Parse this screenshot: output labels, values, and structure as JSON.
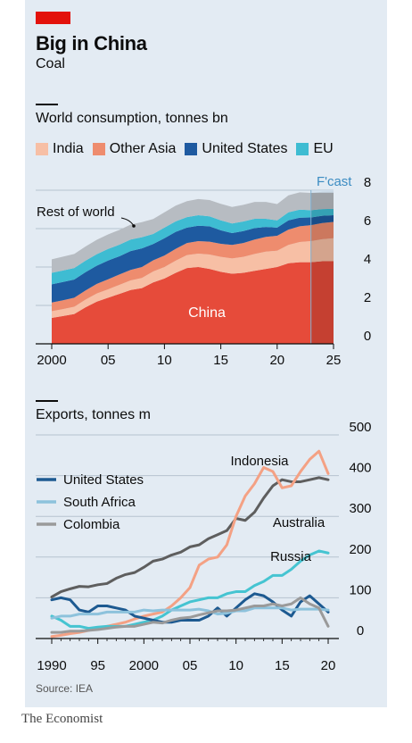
{
  "header": {
    "title": "Big in China",
    "subtitle": "Coal",
    "accent_color": "#e3120b",
    "background_color": "#e3ebf3"
  },
  "footer": {
    "source": "Source: IEA",
    "brand": "The Economist"
  },
  "chart_data": [
    {
      "type": "area",
      "stacked": true,
      "title": "World consumption, tonnes bn",
      "x": [
        2000,
        2001,
        2002,
        2003,
        2004,
        2005,
        2006,
        2007,
        2008,
        2009,
        2010,
        2011,
        2012,
        2013,
        2014,
        2015,
        2016,
        2017,
        2018,
        2019,
        2020,
        2021,
        2022,
        2023,
        2024,
        2025
      ],
      "xlim": [
        2000,
        2025
      ],
      "ylim": [
        0,
        8
      ],
      "x_tick_labels": [
        "2000",
        "05",
        "10",
        "15",
        "20",
        "25"
      ],
      "y_tick_labels": [
        "0",
        "2",
        "4",
        "6",
        "8"
      ],
      "y_axis_side": "right",
      "forecast_label": "F'cast",
      "forecast_start": 2023,
      "annotations": [
        "Rest of world",
        "China"
      ],
      "series": [
        {
          "name": "China",
          "color": "#e64b3a",
          "values": [
            1.35,
            1.45,
            1.55,
            1.9,
            2.2,
            2.4,
            2.6,
            2.8,
            2.9,
            3.2,
            3.4,
            3.7,
            3.95,
            4.0,
            3.9,
            3.75,
            3.65,
            3.7,
            3.8,
            3.9,
            4.0,
            4.2,
            4.25,
            4.25,
            4.3,
            4.3
          ]
        },
        {
          "name": "India",
          "color": "#f7bfa5",
          "values": [
            0.35,
            0.36,
            0.38,
            0.4,
            0.42,
            0.44,
            0.47,
            0.5,
            0.53,
            0.57,
            0.6,
            0.63,
            0.67,
            0.7,
            0.75,
            0.78,
            0.8,
            0.83,
            0.88,
            0.9,
            0.85,
            0.95,
            1.05,
            1.1,
            1.15,
            1.2
          ]
        },
        {
          "name": "Other Asia",
          "color": "#ee8c6e",
          "values": [
            0.45,
            0.46,
            0.47,
            0.48,
            0.5,
            0.52,
            0.54,
            0.55,
            0.57,
            0.58,
            0.6,
            0.62,
            0.63,
            0.65,
            0.67,
            0.68,
            0.7,
            0.72,
            0.75,
            0.77,
            0.78,
            0.8,
            0.82,
            0.83,
            0.84,
            0.85
          ]
        },
        {
          "name": "United States",
          "color": "#1e5aa0",
          "values": [
            0.95,
            0.95,
            0.95,
            0.95,
            0.95,
            0.98,
            0.95,
            0.98,
            0.97,
            0.85,
            0.9,
            0.88,
            0.8,
            0.8,
            0.8,
            0.7,
            0.62,
            0.62,
            0.6,
            0.52,
            0.42,
            0.48,
            0.45,
            0.4,
            0.38,
            0.35
          ]
        },
        {
          "name": "EU",
          "color": "#3ebcd2",
          "values": [
            0.6,
            0.6,
            0.6,
            0.6,
            0.6,
            0.6,
            0.6,
            0.6,
            0.58,
            0.52,
            0.55,
            0.55,
            0.55,
            0.55,
            0.52,
            0.52,
            0.5,
            0.5,
            0.48,
            0.42,
            0.38,
            0.42,
            0.42,
            0.38,
            0.35,
            0.33
          ]
        },
        {
          "name": "Rest of world",
          "color": "#b7bcc2",
          "values": [
            0.7,
            0.72,
            0.73,
            0.74,
            0.75,
            0.76,
            0.77,
            0.78,
            0.79,
            0.78,
            0.8,
            0.82,
            0.83,
            0.84,
            0.85,
            0.86,
            0.86,
            0.87,
            0.88,
            0.88,
            0.85,
            0.88,
            0.9,
            0.9,
            0.9,
            0.9
          ]
        }
      ]
    },
    {
      "type": "line",
      "title": "Exports, tonnes m",
      "x": [
        1990,
        1991,
        1992,
        1993,
        1994,
        1995,
        1996,
        1997,
        1998,
        1999,
        2000,
        2001,
        2002,
        2003,
        2004,
        2005,
        2006,
        2007,
        2008,
        2009,
        2010,
        2011,
        2012,
        2013,
        2014,
        2015,
        2016,
        2017,
        2018,
        2019,
        2020
      ],
      "xlim": [
        1990,
        2020
      ],
      "ylim": [
        0,
        500
      ],
      "x_tick_labels": [
        "1990",
        "95",
        "2000",
        "05",
        "10",
        "15",
        "20"
      ],
      "y_tick_labels": [
        "0",
        "100",
        "200",
        "300",
        "400",
        "500"
      ],
      "y_axis_side": "right",
      "series": [
        {
          "name": "Australia",
          "color": "#5e5e5e",
          "values": [
            102,
            115,
            122,
            128,
            127,
            132,
            135,
            148,
            157,
            162,
            175,
            190,
            195,
            205,
            212,
            225,
            230,
            245,
            255,
            265,
            295,
            290,
            310,
            345,
            375,
            390,
            385,
            385,
            390,
            395,
            390
          ]
        },
        {
          "name": "Indonesia",
          "color": "#f4a184",
          "values": [
            5,
            8,
            12,
            15,
            20,
            25,
            30,
            35,
            40,
            48,
            55,
            60,
            65,
            80,
            100,
            125,
            180,
            195,
            200,
            230,
            300,
            350,
            380,
            420,
            410,
            370,
            375,
            410,
            440,
            460,
            405
          ]
        },
        {
          "name": "Russia",
          "color": "#45c4d1",
          "values": [
            55,
            45,
            30,
            30,
            25,
            28,
            30,
            30,
            30,
            35,
            40,
            45,
            55,
            70,
            80,
            90,
            95,
            100,
            100,
            110,
            115,
            115,
            130,
            140,
            155,
            155,
            170,
            190,
            205,
            215,
            210
          ]
        },
        {
          "name": "United States",
          "color": "#1d5a91",
          "values": [
            95,
            100,
            95,
            70,
            65,
            80,
            80,
            75,
            70,
            55,
            50,
            45,
            40,
            40,
            45,
            45,
            45,
            55,
            75,
            55,
            75,
            95,
            110,
            105,
            90,
            70,
            55,
            90,
            105,
            85,
            65
          ]
        },
        {
          "name": "South Africa",
          "color": "#8dc2dc",
          "values": [
            50,
            55,
            55,
            60,
            60,
            60,
            65,
            65,
            65,
            65,
            70,
            68,
            70,
            70,
            70,
            70,
            72,
            68,
            60,
            62,
            68,
            68,
            75,
            75,
            75,
            75,
            70,
            72,
            72,
            72,
            70
          ]
        },
        {
          "name": "Colombia",
          "color": "#9a9a9a",
          "values": [
            15,
            15,
            18,
            18,
            20,
            22,
            25,
            28,
            30,
            30,
            35,
            40,
            38,
            45,
            50,
            52,
            58,
            63,
            68,
            68,
            70,
            75,
            80,
            80,
            85,
            80,
            85,
            100,
            85,
            75,
            30
          ]
        }
      ]
    }
  ]
}
